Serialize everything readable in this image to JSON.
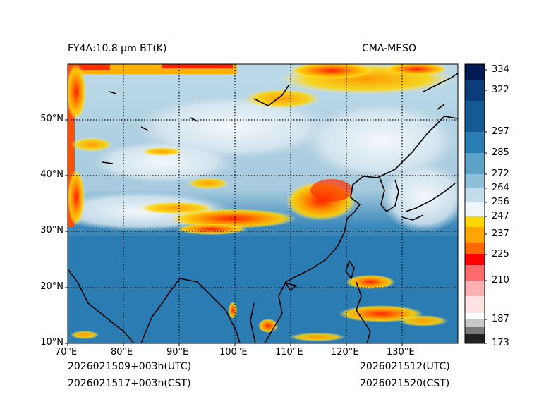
{
  "header": {
    "left_title": "FY4A:10.8 µm BT(K)",
    "right_title": "CMA-MESO"
  },
  "map": {
    "lon_labels": [
      "70°E",
      "80°E",
      "90°E",
      "100°E",
      "110°E",
      "120°E",
      "130°E"
    ],
    "lat_labels": [
      "10°N",
      "20°N",
      "30°N",
      "40°N",
      "50°N"
    ],
    "lon_range": [
      70,
      140
    ],
    "lat_range": [
      10,
      60
    ]
  },
  "colorbar": {
    "unit": "K",
    "ticks": [
      "334",
      "322",
      "297",
      "285",
      "272",
      "264",
      "256",
      "247",
      "237",
      "225",
      "210",
      "187",
      "173"
    ],
    "colors": {
      "coldest": "#000000",
      "cold_white": "#ffffff",
      "red": "#ff0000",
      "orange": "#ff8c00",
      "yellow": "#ffd800",
      "light_blue": "#b8d8e8",
      "mid_blue": "#2a7db0",
      "dark_navy": "#001a55"
    }
  },
  "footer": {
    "init_utc": "2026021509+003h(UTC)",
    "init_cst": "2026021517+003h(CST)",
    "valid_utc": "2026021512(UTC)",
    "valid_cst": "2026021520(CST)"
  }
}
